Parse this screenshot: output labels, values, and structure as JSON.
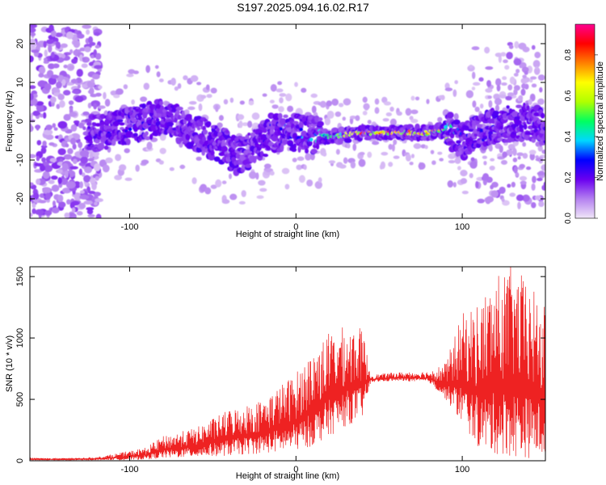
{
  "title": "S197.2025.094.16.02.R17",
  "chart_data": [
    {
      "type": "heatmap",
      "xlabel": "Height of straight line (km)",
      "ylabel": "Frequency (Hz)",
      "xlim": [
        -160,
        150
      ],
      "ylim": [
        -25,
        25
      ],
      "xticks": [
        -100,
        0,
        100
      ],
      "yticks": [
        -20,
        -10,
        0,
        10,
        20
      ],
      "colorbar": {
        "label": "Normalized spectral amplitude",
        "range": [
          0,
          0.95
        ],
        "ticks": [
          0.0,
          0.2,
          0.4,
          0.6,
          0.8
        ],
        "colors": [
          "#f0e6f8",
          "#b480f0",
          "#6a00f0",
          "#0000ff",
          "#00d8ff",
          "#00ff60",
          "#b0ff00",
          "#ffff00",
          "#ff8000",
          "#ff0000",
          "#ff0090"
        ]
      },
      "ridge_track": {
        "x": [
          -120,
          -100,
          -80,
          -60,
          -45,
          -35,
          -25,
          -15,
          0,
          20,
          40,
          60,
          80,
          90,
          100,
          120,
          140,
          150
        ],
        "frequency": [
          -3,
          -1,
          1,
          -3,
          -6,
          -9,
          -7,
          -3,
          -3,
          -4,
          -3,
          -3,
          -3,
          -2,
          -5,
          -1,
          0,
          -2
        ],
        "peak_amplitude": [
          0.25,
          0.3,
          0.25,
          0.2,
          0.2,
          0.2,
          0.2,
          0.3,
          0.35,
          0.55,
          0.9,
          0.85,
          0.9,
          0.7,
          0.3,
          0.3,
          0.2,
          0.2
        ]
      }
    },
    {
      "type": "line",
      "xlabel": "Height of straight line (km)",
      "ylabel": "SNR (10 * v/v)",
      "xlim": [
        -160,
        150
      ],
      "ylim": [
        0,
        1580
      ],
      "xticks": [
        -100,
        0,
        100
      ],
      "yticks": [
        0,
        500,
        1000,
        1500
      ],
      "color": "#ee2222",
      "envelope": {
        "x": [
          -160,
          -140,
          -120,
          -100,
          -90,
          -80,
          -60,
          -40,
          -20,
          0,
          10,
          20,
          30,
          40,
          45,
          60,
          80,
          90,
          100,
          110,
          120,
          130,
          140,
          150
        ],
        "upper": [
          25,
          20,
          30,
          80,
          110,
          200,
          270,
          420,
          500,
          720,
          900,
          1050,
          1100,
          1080,
          700,
          720,
          730,
          800,
          1200,
          1300,
          1500,
          1600,
          1450,
          1250
        ],
        "lower": [
          5,
          5,
          5,
          5,
          10,
          20,
          30,
          40,
          60,
          80,
          120,
          200,
          280,
          350,
          640,
          650,
          640,
          500,
          300,
          100,
          50,
          30,
          20,
          30
        ]
      }
    }
  ]
}
